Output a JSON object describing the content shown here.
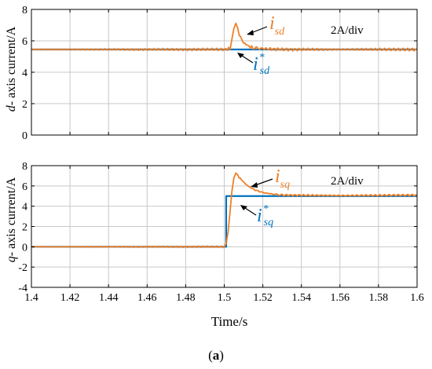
{
  "figure": {
    "label_open": "(",
    "label": "a",
    "label_close": ")"
  },
  "colors": {
    "reference": "#0072BD",
    "measured": "#F07F26",
    "grid": "#C8C8C8",
    "axes": "#000000"
  },
  "chart_data": [
    {
      "type": "line",
      "ylabel_prefix": "d",
      "ylabel": "- axis current/A",
      "xlim": [
        1.4,
        1.6
      ],
      "ylim": [
        0,
        8
      ],
      "yticks": [
        0,
        2,
        4,
        6,
        8
      ],
      "xticks": [
        1.4,
        1.42,
        1.44,
        1.46,
        1.48,
        1.5,
        1.52,
        1.54,
        1.56,
        1.58,
        1.6
      ],
      "grid": true,
      "annotation": "2A/div",
      "series": [
        {
          "label_symbol": "i",
          "label_sub": "sd",
          "label_sup": "",
          "role": "measured",
          "x": [
            1.4,
            1.45,
            1.5,
            1.503,
            1.504,
            1.505,
            1.506,
            1.507,
            1.5085,
            1.51,
            1.512,
            1.515,
            1.52,
            1.53,
            1.56,
            1.6
          ],
          "y": [
            5.45,
            5.45,
            5.45,
            5.5,
            6.2,
            6.8,
            7.05,
            6.7,
            6.2,
            5.9,
            5.7,
            5.55,
            5.5,
            5.45,
            5.45,
            5.45
          ]
        },
        {
          "label_symbol": "i",
          "label_sub": "sd",
          "label_sup": "*",
          "role": "reference",
          "x": [
            1.4,
            1.6
          ],
          "y": [
            5.45,
            5.45
          ]
        }
      ]
    },
    {
      "type": "line",
      "ylabel_prefix": "q",
      "ylabel": "- axis current/A",
      "xlim": [
        1.4,
        1.6
      ],
      "ylim": [
        -4,
        8
      ],
      "yticks": [
        -4,
        -2,
        0,
        2,
        4,
        6,
        8
      ],
      "xticks": [
        1.4,
        1.42,
        1.44,
        1.46,
        1.48,
        1.5,
        1.52,
        1.54,
        1.56,
        1.58,
        1.6
      ],
      "xticklabels": [
        "1.4",
        "1.42",
        "1.44",
        "1.46",
        "1.48",
        "1.5",
        "1.52",
        "1.54",
        "1.56",
        "1.58",
        "1.6"
      ],
      "xlabel": "Time/s",
      "grid": true,
      "annotation": "2A/div",
      "series": [
        {
          "label_symbol": "i",
          "label_sub": "sq",
          "label_sup": "",
          "role": "measured",
          "x": [
            1.4,
            1.45,
            1.5,
            1.501,
            1.502,
            1.503,
            1.504,
            1.505,
            1.506,
            1.507,
            1.509,
            1.511,
            1.513,
            1.516,
            1.52,
            1.525,
            1.53,
            1.56,
            1.6
          ],
          "y": [
            0.0,
            0.0,
            0.0,
            0.3,
            1.5,
            3.5,
            5.6,
            6.8,
            7.2,
            7.0,
            6.6,
            6.2,
            5.9,
            5.6,
            5.35,
            5.2,
            5.1,
            5.05,
            5.1
          ]
        },
        {
          "label_symbol": "i",
          "label_sub": "sq",
          "label_sup": "*",
          "role": "reference",
          "x": [
            1.4,
            1.501,
            1.501,
            1.6
          ],
          "y": [
            0.0,
            0.0,
            5.0,
            5.0
          ]
        }
      ]
    }
  ]
}
